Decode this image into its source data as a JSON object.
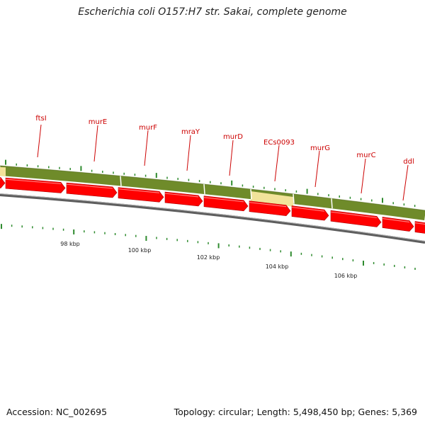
{
  "title": "Escherichia coli O157:H7 str. Sakai, complete genome",
  "footer": {
    "accession": "Accession: NC_002695",
    "topology": "Topology: circular; Length: 5,498,450 bp; Genes: 5,369"
  },
  "colors": {
    "feature_track": "#6f8b2a",
    "feature_track_highlight": "#f2e39a",
    "gene_arrow": "#ff0000",
    "gene_label": "#cc0000",
    "backbone": "#808080",
    "tick": "#2e8b2e"
  },
  "gene_labels": [
    "ftsI",
    "murE",
    "murF",
    "mraY",
    "murD",
    "ECs0093",
    "murG",
    "murC",
    "ddl"
  ],
  "scale_labels": [
    "98 kbp",
    "100 kbp",
    "102 kbp",
    "104 kbp",
    "106 kbp"
  ]
}
